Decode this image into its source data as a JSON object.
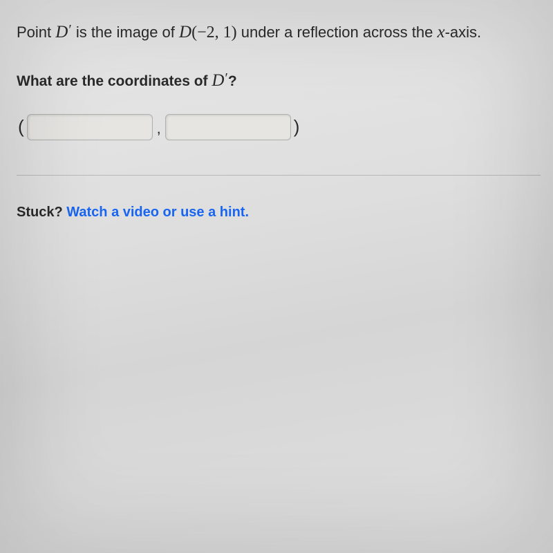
{
  "problem": {
    "prefix": "Point ",
    "D": "D",
    "prime": "′",
    "mid1": " is the image of ",
    "coords_open": "(",
    "x": "−2",
    "coord_sep": ", ",
    "y": "1",
    "coords_close": ")",
    "mid2": " under a reflection across the ",
    "xvar": "x",
    "suffix": "-axis."
  },
  "question": {
    "prefix": "What are the coordinates of ",
    "D": "D",
    "prime": "′",
    "suffix": "?"
  },
  "answer": {
    "open": "(",
    "comma": ",",
    "close": ")",
    "x_value": "",
    "y_value": ""
  },
  "stuck": {
    "label": "Stuck?  ",
    "link": "Watch a video or use a hint."
  },
  "colors": {
    "text": "#2a2a2a",
    "link": "#1865f2",
    "input_border": "#b0b0b0",
    "input_bg": "#e6e5e2"
  }
}
